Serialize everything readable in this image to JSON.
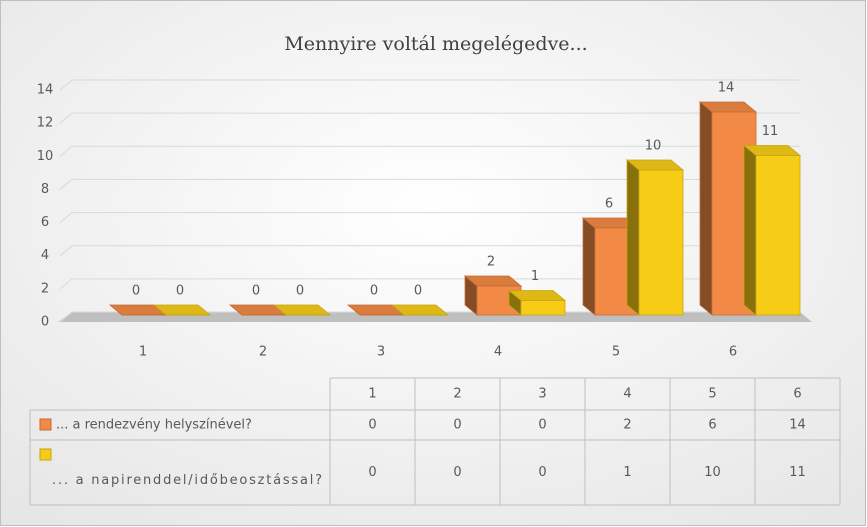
{
  "chart_data": {
    "type": "bar3d",
    "title": "Mennyire voltál megelégedve...",
    "categories": [
      "1",
      "2",
      "3",
      "4",
      "5",
      "6"
    ],
    "series": [
      {
        "name": "... a rendezvény helyszínével?",
        "color": "#f28a45",
        "values": [
          0,
          0,
          0,
          2,
          6,
          14
        ]
      },
      {
        "name": "... a napirenddel/időbeosztással?",
        "color": "#f7cc17",
        "values": [
          0,
          0,
          0,
          1,
          10,
          11
        ]
      }
    ],
    "ylim": [
      0,
      14
    ],
    "yticks": [
      0,
      2,
      4,
      6,
      8,
      10,
      12,
      14
    ],
    "grid": true,
    "data_table": true
  }
}
